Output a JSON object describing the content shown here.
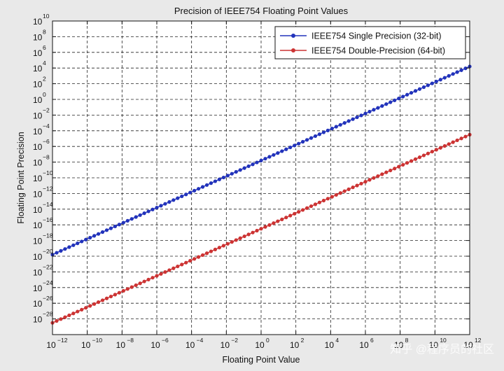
{
  "chart_data": {
    "type": "line",
    "title": "Precision of IEEE754 Floating Point Values",
    "xlabel": "Floating Point Value",
    "ylabel": "Floating Point Precision",
    "x_scale": "log",
    "y_scale": "log",
    "xlim": [
      1e-12,
      1000000000000.0
    ],
    "ylim": [
      1e-30,
      10000000000.0
    ],
    "x_tick_exponents": [
      -12,
      -10,
      -8,
      -6,
      -4,
      -2,
      0,
      2,
      4,
      6,
      8,
      10,
      12
    ],
    "y_tick_exponents": [
      -28,
      -26,
      -24,
      -22,
      -20,
      -18,
      -16,
      -14,
      -12,
      -10,
      -8,
      -6,
      -4,
      -2,
      0,
      2,
      4,
      6,
      8,
      10
    ],
    "grid": true,
    "legend_position": "top-right",
    "series": [
      {
        "name": "IEEE754 Single Precision (32-bit)",
        "color": "#2233bb",
        "marker": "circle",
        "x_log10_start": -12,
        "x_log10_end": 12,
        "y_log10_start": -19.8,
        "y_log10_end": 4.2
      },
      {
        "name": "IEEE754 Double-Precision (64-bit)",
        "color": "#cc3333",
        "marker": "circle",
        "x_log10_start": -12,
        "x_log10_end": 12,
        "y_log10_start": -28.5,
        "y_log10_end": -4.5
      }
    ]
  },
  "watermark": {
    "text": "知乎 @程序员的社区"
  }
}
